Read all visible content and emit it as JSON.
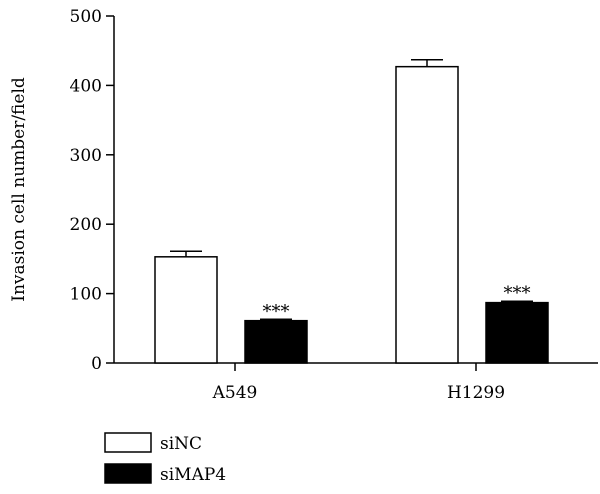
{
  "chart_data": {
    "type": "bar",
    "categories": [
      "A549",
      "H1299"
    ],
    "series": [
      {
        "name": "siNC",
        "values": [
          153,
          427
        ],
        "errors": [
          8,
          10
        ],
        "color": "#ffffff"
      },
      {
        "name": "siMAP4",
        "values": [
          61,
          87
        ],
        "errors": [
          2,
          2
        ],
        "color": "#000000"
      }
    ],
    "annotations": [
      [
        "",
        "***"
      ],
      [
        "",
        "***"
      ]
    ],
    "xlabel": "",
    "ylabel": "Invasion cell number/field",
    "ylim": [
      0,
      500
    ],
    "yticks": [
      0,
      100,
      200,
      300,
      400,
      500
    ],
    "ytick_labels": [
      "0",
      "100",
      "200",
      "300",
      "400",
      "500"
    ],
    "grid": false,
    "legend_position": "bottom-left"
  }
}
